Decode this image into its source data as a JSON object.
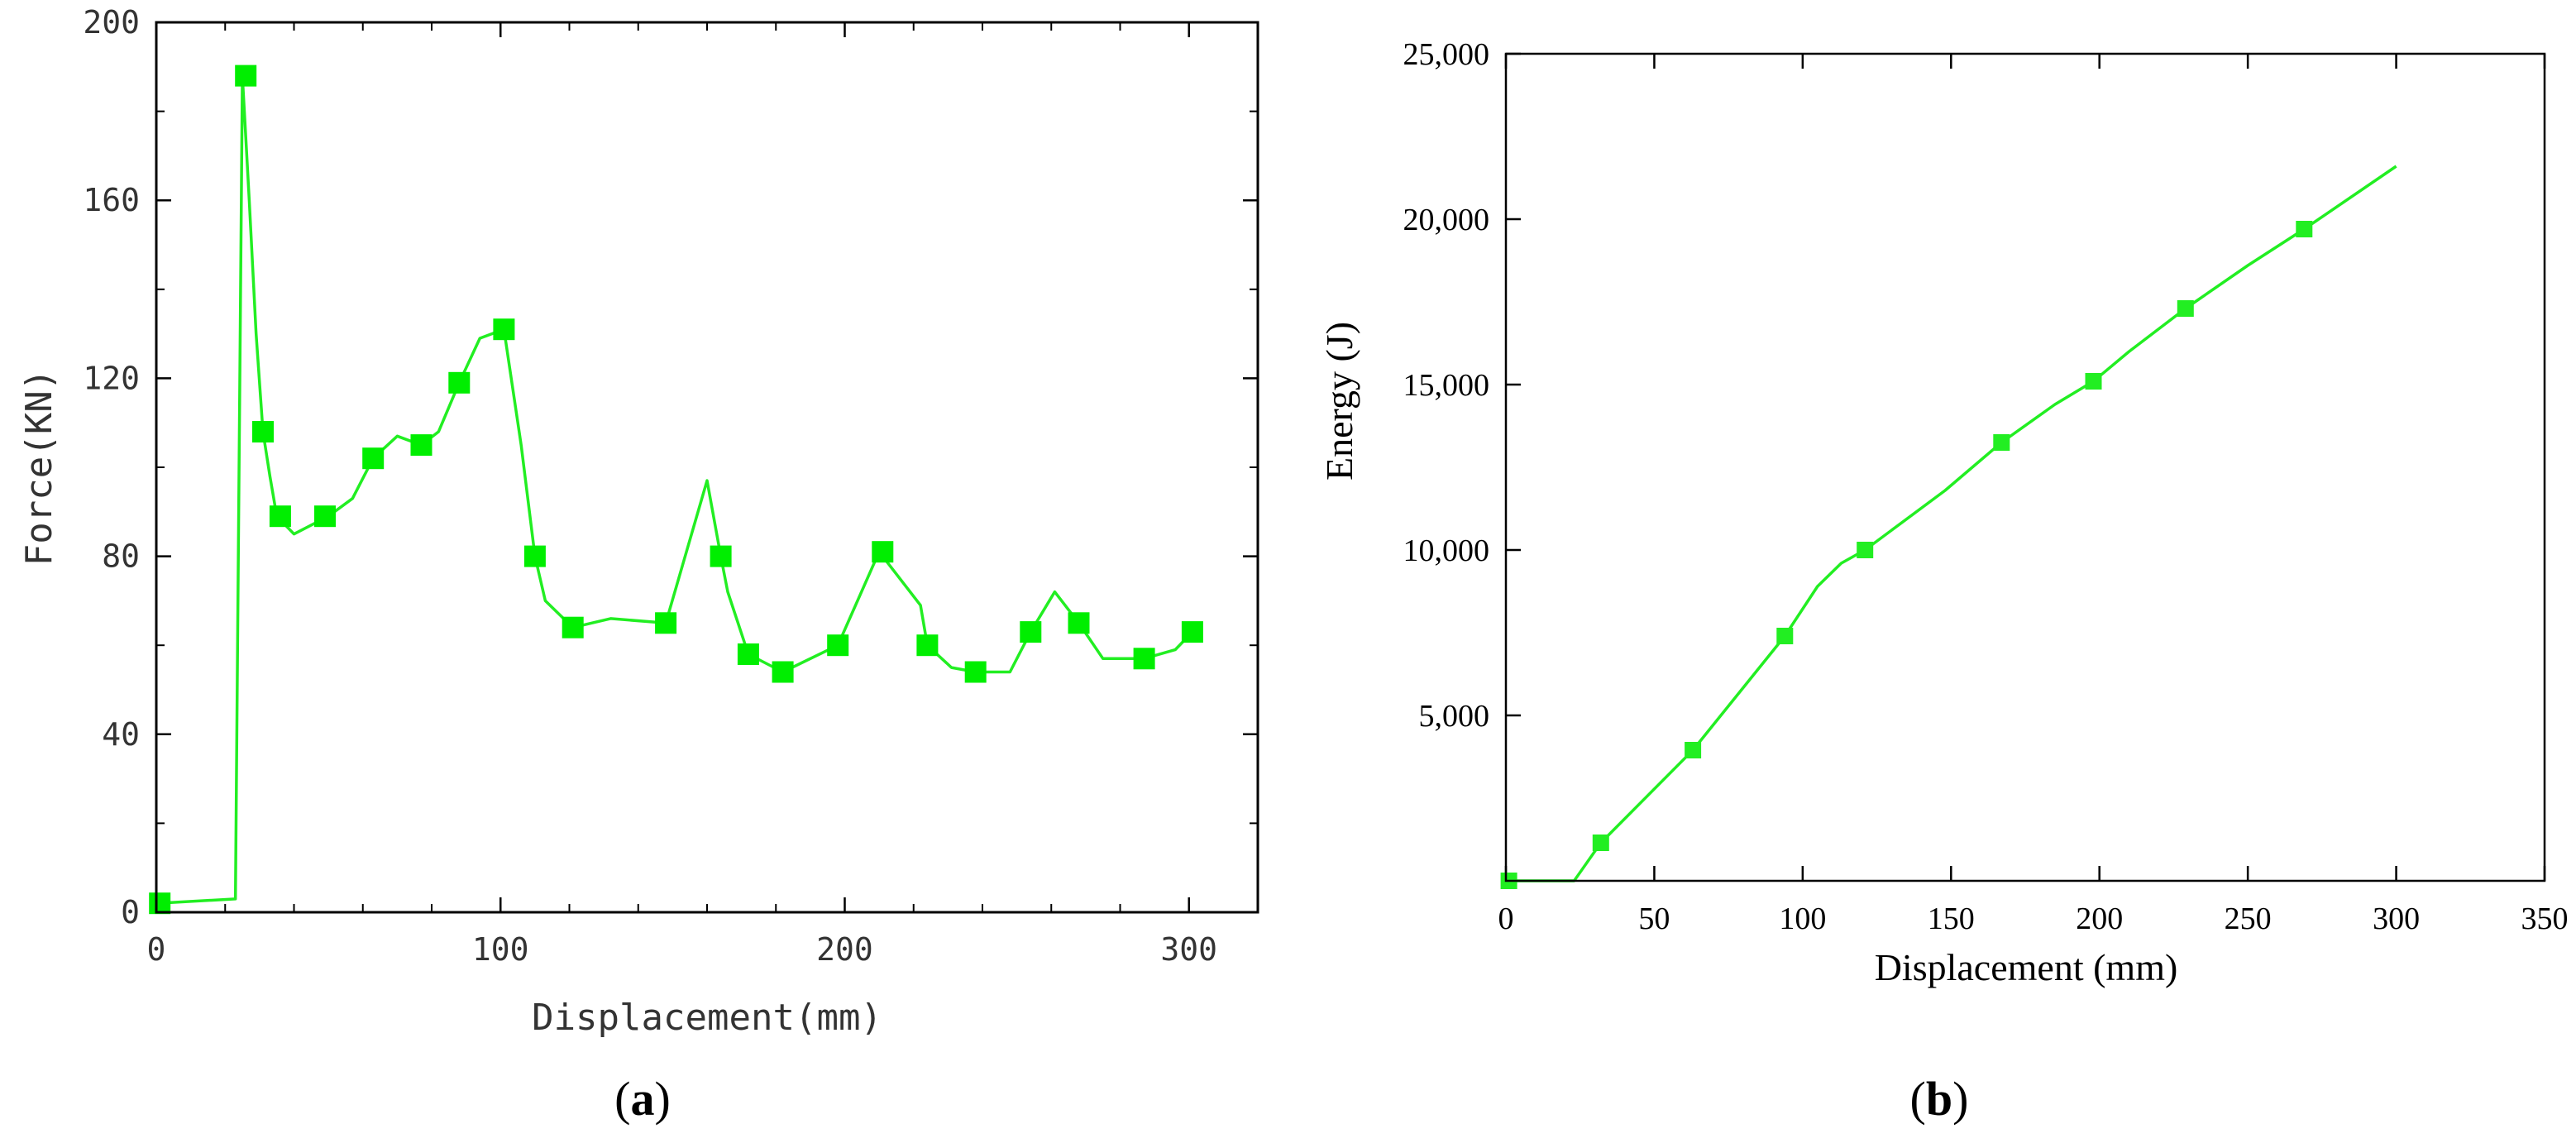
{
  "chart_data": [
    {
      "type": "line",
      "panel_label": "a",
      "xlabel": "Displacement(mm)",
      "ylabel": "Force(KN)",
      "xlim": [
        0,
        320
      ],
      "ylim": [
        0,
        200
      ],
      "xticks": [
        0,
        100,
        200,
        300
      ],
      "yticks": [
        0,
        40,
        80,
        120,
        160,
        200
      ],
      "x_minor_step": 20,
      "y_minor_step": 20,
      "grid": false,
      "legend": "none",
      "color": "#22ee22",
      "marker_color": "#00ee00",
      "marker": "square",
      "series": [
        {
          "line": [
            [
              0,
              2
            ],
            [
              23,
              3
            ],
            [
              25,
              188
            ],
            [
              27,
              160
            ],
            [
              29,
              130
            ],
            [
              31,
              108
            ],
            [
              33,
              98
            ],
            [
              35,
              89
            ],
            [
              40,
              85
            ],
            [
              50,
              89
            ],
            [
              57,
              93
            ],
            [
              63,
              102
            ],
            [
              70,
              107
            ],
            [
              77,
              105
            ],
            [
              82,
              108
            ],
            [
              88,
              119
            ],
            [
              94,
              129
            ],
            [
              101,
              131
            ],
            [
              106,
              105
            ],
            [
              110,
              80
            ],
            [
              113,
              70
            ],
            [
              121,
              64
            ],
            [
              132,
              66
            ],
            [
              148,
              65
            ],
            [
              160,
              97
            ],
            [
              164,
              80
            ],
            [
              166,
              72
            ],
            [
              172,
              58
            ],
            [
              182,
              54
            ],
            [
              198,
              60
            ],
            [
              210,
              81
            ],
            [
              222,
              69
            ],
            [
              224,
              60
            ],
            [
              231,
              55
            ],
            [
              238,
              54
            ],
            [
              248,
              54
            ],
            [
              254,
              63
            ],
            [
              261,
              72
            ],
            [
              268,
              65
            ],
            [
              275,
              57
            ],
            [
              287,
              57
            ],
            [
              296,
              59
            ],
            [
              301,
              63
            ]
          ],
          "markers": [
            [
              1,
              2
            ],
            [
              26,
              188
            ],
            [
              31,
              108
            ],
            [
              36,
              89
            ],
            [
              49,
              89
            ],
            [
              63,
              102
            ],
            [
              77,
              105
            ],
            [
              88,
              119
            ],
            [
              101,
              131
            ],
            [
              110,
              80
            ],
            [
              121,
              64
            ],
            [
              148,
              65
            ],
            [
              164,
              80
            ],
            [
              172,
              58
            ],
            [
              182,
              54
            ],
            [
              198,
              60
            ],
            [
              211,
              81
            ],
            [
              224,
              60
            ],
            [
              238,
              54
            ],
            [
              254,
              63
            ],
            [
              268,
              65
            ],
            [
              287,
              57
            ],
            [
              301,
              63
            ]
          ]
        }
      ]
    },
    {
      "type": "line",
      "panel_label": "b",
      "xlabel": "Displacement (mm)",
      "ylabel": "Energy (J)",
      "xlim": [
        0,
        350
      ],
      "ylim": [
        0,
        25000
      ],
      "xticks": [
        0,
        50,
        100,
        150,
        200,
        250,
        300,
        350
      ],
      "yticks": [
        5000,
        10000,
        15000,
        20000,
        25000
      ],
      "ytick_labels": [
        "5,000",
        "10,000",
        "15,000",
        "20,000",
        "25,000"
      ],
      "grid": false,
      "legend": "none",
      "color": "#22ee22",
      "marker_color": "#22ee22",
      "marker": "square",
      "series": [
        {
          "line": [
            [
              0,
              0
            ],
            [
              23,
              0
            ],
            [
              32,
              1150
            ],
            [
              63,
              3950
            ],
            [
              94,
              7400
            ],
            [
              105,
              8900
            ],
            [
              113,
              9600
            ],
            [
              121,
              10000
            ],
            [
              148,
              11800
            ],
            [
              167,
              13250
            ],
            [
              185,
              14400
            ],
            [
              198,
              15100
            ],
            [
              210,
              16000
            ],
            [
              229,
              17300
            ],
            [
              250,
              18600
            ],
            [
              269,
              19700
            ],
            [
              300,
              21600
            ]
          ],
          "markers": [
            [
              1,
              0
            ],
            [
              32,
              1150
            ],
            [
              63,
              3950
            ],
            [
              94,
              7400
            ],
            [
              121,
              10000
            ],
            [
              167,
              13250
            ],
            [
              198,
              15100
            ],
            [
              229,
              17300
            ],
            [
              269,
              19700
            ]
          ]
        }
      ]
    }
  ]
}
